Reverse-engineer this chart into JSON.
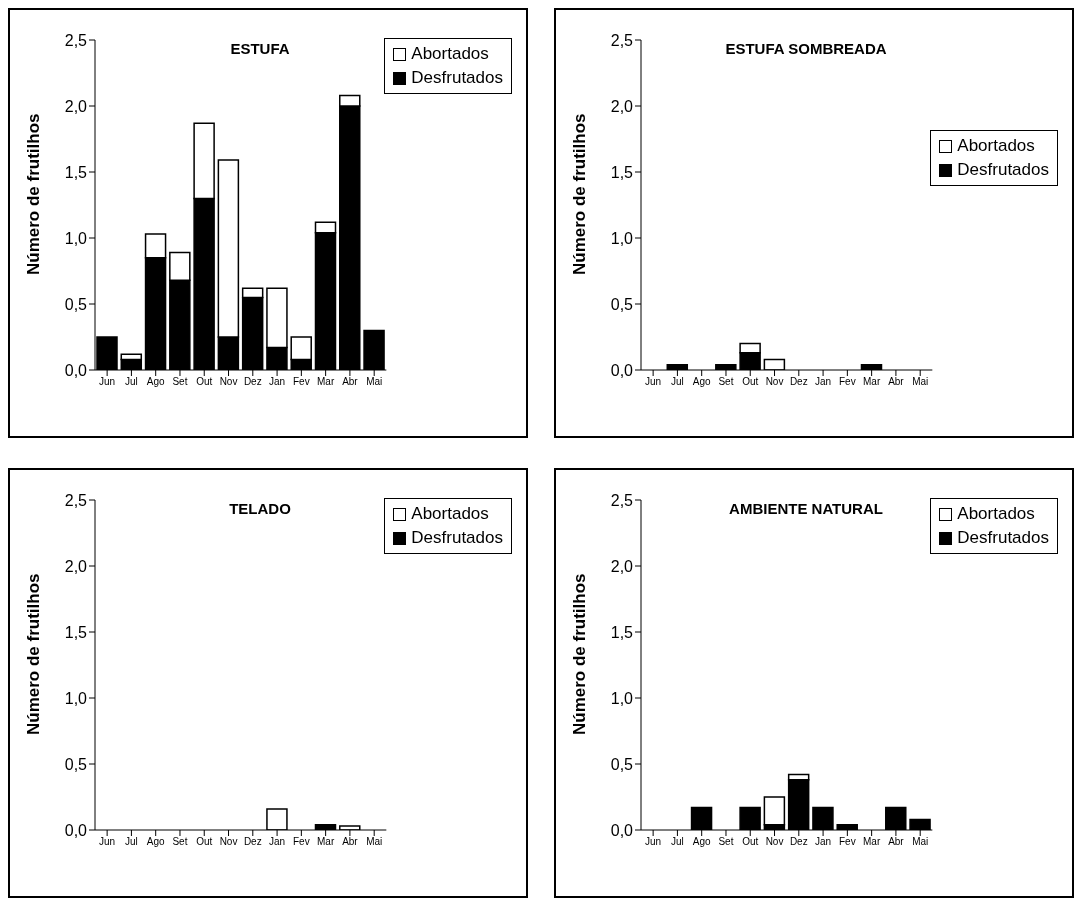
{
  "chart_data": [
    {
      "type": "bar",
      "title": "ESTUFA",
      "ylabel": "Número de frutilhos",
      "categories": [
        "Jun",
        "Jul",
        "Ago",
        "Set",
        "Out",
        "Nov",
        "Dez",
        "Jan",
        "Fev",
        "Mar",
        "Abr",
        "Mai"
      ],
      "stacked": true,
      "legend": "top right",
      "ylim": [
        0,
        2.5
      ],
      "yticks": [
        {
          "value": 0,
          "label": "0,0"
        },
        {
          "value": 0.5,
          "label": "0,5"
        },
        {
          "value": 1,
          "label": "1,0"
        },
        {
          "value": 1.5,
          "label": "1,5"
        },
        {
          "value": 2,
          "label": "2,0"
        },
        {
          "value": 2.5,
          "label": "2,5"
        }
      ],
      "series": [
        {
          "name": "Desfrutados",
          "color": "#000000",
          "values": [
            0.25,
            0.08,
            0.85,
            0.68,
            1.3,
            0.25,
            0.55,
            0.17,
            0.08,
            1.04,
            2.0,
            0.3
          ]
        },
        {
          "name": "Abortados",
          "color": "#ffffff",
          "values": [
            0,
            0.04,
            0.18,
            0.21,
            0.57,
            1.34,
            0.07,
            0.45,
            0.17,
            0.08,
            0.08,
            0
          ]
        }
      ]
    },
    {
      "type": "bar",
      "title": "ESTUFA SOMBREADA",
      "ylabel": "Número de frutilhos",
      "categories": [
        "Jun",
        "Jul",
        "Ago",
        "Set",
        "Out",
        "Nov",
        "Dez",
        "Jan",
        "Fev",
        "Mar",
        "Abr",
        "Mai"
      ],
      "stacked": true,
      "legend": "right",
      "ylim": [
        0,
        2.5
      ],
      "yticks": [
        {
          "value": 0,
          "label": "0,0"
        },
        {
          "value": 0.5,
          "label": "0,5"
        },
        {
          "value": 1,
          "label": "1,0"
        },
        {
          "value": 1.5,
          "label": "1,5"
        },
        {
          "value": 2,
          "label": "2,0"
        },
        {
          "value": 2.5,
          "label": "2,5"
        }
      ],
      "series": [
        {
          "name": "Desfrutados",
          "color": "#000000",
          "values": [
            0,
            0.04,
            0,
            0.04,
            0.13,
            0,
            0,
            0,
            0,
            0.04,
            0,
            0
          ]
        },
        {
          "name": "Abortados",
          "color": "#ffffff",
          "values": [
            0,
            0,
            0,
            0,
            0.07,
            0.08,
            0,
            0,
            0,
            0,
            0,
            0
          ]
        }
      ]
    },
    {
      "type": "bar",
      "title": "TELADO",
      "ylabel": "Número de frutilhos",
      "categories": [
        "Jun",
        "Jul",
        "Ago",
        "Set",
        "Out",
        "Nov",
        "Dez",
        "Jan",
        "Fev",
        "Mar",
        "Abr",
        "Mai"
      ],
      "stacked": true,
      "legend": "top right",
      "ylim": [
        0,
        2.5
      ],
      "yticks": [
        {
          "value": 0,
          "label": "0,0"
        },
        {
          "value": 0.5,
          "label": "0,5"
        },
        {
          "value": 1,
          "label": "1,0"
        },
        {
          "value": 1.5,
          "label": "1,5"
        },
        {
          "value": 2,
          "label": "2,0"
        },
        {
          "value": 2.5,
          "label": "2,5"
        }
      ],
      "series": [
        {
          "name": "Desfrutados",
          "color": "#000000",
          "values": [
            0,
            0,
            0,
            0,
            0,
            0,
            0,
            0,
            0,
            0.04,
            0,
            0
          ]
        },
        {
          "name": "Abortados",
          "color": "#ffffff",
          "values": [
            0,
            0,
            0,
            0,
            0,
            0,
            0,
            0.16,
            0,
            0,
            0.03,
            0
          ]
        }
      ]
    },
    {
      "type": "bar",
      "title": "AMBIENTE NATURAL",
      "ylabel": "Número de frutilhos",
      "categories": [
        "Jun",
        "Jul",
        "Ago",
        "Set",
        "Out",
        "Nov",
        "Dez",
        "Jan",
        "Fev",
        "Mar",
        "Abr",
        "Mai"
      ],
      "stacked": true,
      "legend": "top right",
      "ylim": [
        0,
        2.5
      ],
      "yticks": [
        {
          "value": 0,
          "label": "0,0"
        },
        {
          "value": 0.5,
          "label": "0,5"
        },
        {
          "value": 1,
          "label": "1,0"
        },
        {
          "value": 1.5,
          "label": "1,5"
        },
        {
          "value": 2,
          "label": "2,0"
        },
        {
          "value": 2.5,
          "label": "2,5"
        }
      ],
      "series": [
        {
          "name": "Desfrutados",
          "color": "#000000",
          "values": [
            0,
            0,
            0.17,
            0,
            0.17,
            0.04,
            0.38,
            0.17,
            0.04,
            0,
            0.17,
            0.08
          ]
        },
        {
          "name": "Abortados",
          "color": "#ffffff",
          "values": [
            0,
            0,
            0,
            0,
            0,
            0.21,
            0.04,
            0,
            0,
            0,
            0,
            0
          ]
        }
      ]
    }
  ]
}
